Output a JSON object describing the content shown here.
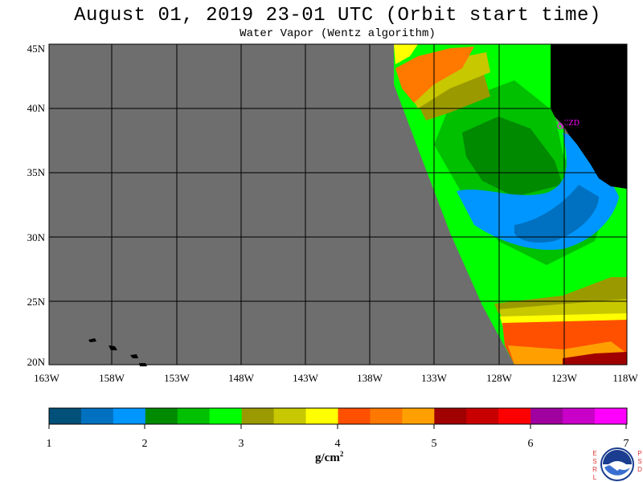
{
  "title": "August 01, 2019  23-01 UTC  (Orbit start time)",
  "subtitle": "Water Vapor (Wentz algorithm)",
  "lat_labels": [
    "45N",
    "40N",
    "35N",
    "30N",
    "25N",
    "20N"
  ],
  "lon_labels": [
    "163W",
    "158W",
    "153W",
    "148W",
    "143W",
    "138W",
    "133W",
    "128W",
    "123W",
    "118W"
  ],
  "station_label": "CZD",
  "colorbar": {
    "tick_labels": [
      "1",
      "2",
      "3",
      "4",
      "5",
      "6",
      "7"
    ],
    "colors": [
      "#00507a",
      "#0070c0",
      "#0096ff",
      "#008a00",
      "#00c000",
      "#00ff00",
      "#9a9a00",
      "#c8c800",
      "#ffff00",
      "#ff5000",
      "#ff7800",
      "#ffa000",
      "#a00000",
      "#c80000",
      "#ff0000",
      "#a000a0",
      "#c800c8",
      "#ff00ff"
    ]
  },
  "unit_label": "g/cm",
  "unit_exponent": "2",
  "logo": {
    "icon": "noaa-logo-icon",
    "left_text": "ESRL",
    "right_text": "PSD"
  },
  "colors": {
    "land": "#000000",
    "no_data": "#6e6e6e",
    "grid": "#000000",
    "station": "#ff00ff"
  }
}
